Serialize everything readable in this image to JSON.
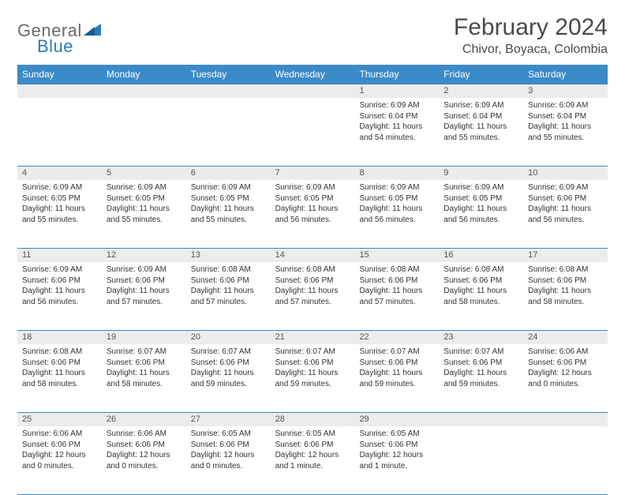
{
  "logo": {
    "text1": "General",
    "text2": "Blue"
  },
  "title": "February 2024",
  "location": "Chivor, Boyaca, Colombia",
  "colors": {
    "header_bg": "#3b8bc8",
    "header_text": "#ffffff",
    "daynum_bg": "#ececec",
    "border": "#3b8bc8",
    "logo_gray": "#6a6a6a",
    "logo_blue": "#2a7ab9"
  },
  "weekdays": [
    "Sunday",
    "Monday",
    "Tuesday",
    "Wednesday",
    "Thursday",
    "Friday",
    "Saturday"
  ],
  "weeks": [
    [
      null,
      null,
      null,
      null,
      {
        "n": "1",
        "sr": "6:09 AM",
        "ss": "6:04 PM",
        "dl": "11 hours and 54 minutes."
      },
      {
        "n": "2",
        "sr": "6:09 AM",
        "ss": "6:04 PM",
        "dl": "11 hours and 55 minutes."
      },
      {
        "n": "3",
        "sr": "6:09 AM",
        "ss": "6:04 PM",
        "dl": "11 hours and 55 minutes."
      }
    ],
    [
      {
        "n": "4",
        "sr": "6:09 AM",
        "ss": "6:05 PM",
        "dl": "11 hours and 55 minutes."
      },
      {
        "n": "5",
        "sr": "6:09 AM",
        "ss": "6:05 PM",
        "dl": "11 hours and 55 minutes."
      },
      {
        "n": "6",
        "sr": "6:09 AM",
        "ss": "6:05 PM",
        "dl": "11 hours and 55 minutes."
      },
      {
        "n": "7",
        "sr": "6:09 AM",
        "ss": "6:05 PM",
        "dl": "11 hours and 56 minutes."
      },
      {
        "n": "8",
        "sr": "6:09 AM",
        "ss": "6:05 PM",
        "dl": "11 hours and 56 minutes."
      },
      {
        "n": "9",
        "sr": "6:09 AM",
        "ss": "6:05 PM",
        "dl": "11 hours and 56 minutes."
      },
      {
        "n": "10",
        "sr": "6:09 AM",
        "ss": "6:06 PM",
        "dl": "11 hours and 56 minutes."
      }
    ],
    [
      {
        "n": "11",
        "sr": "6:09 AM",
        "ss": "6:06 PM",
        "dl": "11 hours and 56 minutes."
      },
      {
        "n": "12",
        "sr": "6:09 AM",
        "ss": "6:06 PM",
        "dl": "11 hours and 57 minutes."
      },
      {
        "n": "13",
        "sr": "6:08 AM",
        "ss": "6:06 PM",
        "dl": "11 hours and 57 minutes."
      },
      {
        "n": "14",
        "sr": "6:08 AM",
        "ss": "6:06 PM",
        "dl": "11 hours and 57 minutes."
      },
      {
        "n": "15",
        "sr": "6:08 AM",
        "ss": "6:06 PM",
        "dl": "11 hours and 57 minutes."
      },
      {
        "n": "16",
        "sr": "6:08 AM",
        "ss": "6:06 PM",
        "dl": "11 hours and 58 minutes."
      },
      {
        "n": "17",
        "sr": "6:08 AM",
        "ss": "6:06 PM",
        "dl": "11 hours and 58 minutes."
      }
    ],
    [
      {
        "n": "18",
        "sr": "6:08 AM",
        "ss": "6:06 PM",
        "dl": "11 hours and 58 minutes."
      },
      {
        "n": "19",
        "sr": "6:07 AM",
        "ss": "6:06 PM",
        "dl": "11 hours and 58 minutes."
      },
      {
        "n": "20",
        "sr": "6:07 AM",
        "ss": "6:06 PM",
        "dl": "11 hours and 59 minutes."
      },
      {
        "n": "21",
        "sr": "6:07 AM",
        "ss": "6:06 PM",
        "dl": "11 hours and 59 minutes."
      },
      {
        "n": "22",
        "sr": "6:07 AM",
        "ss": "6:06 PM",
        "dl": "11 hours and 59 minutes."
      },
      {
        "n": "23",
        "sr": "6:07 AM",
        "ss": "6:06 PM",
        "dl": "11 hours and 59 minutes."
      },
      {
        "n": "24",
        "sr": "6:06 AM",
        "ss": "6:06 PM",
        "dl": "12 hours and 0 minutes."
      }
    ],
    [
      {
        "n": "25",
        "sr": "6:06 AM",
        "ss": "6:06 PM",
        "dl": "12 hours and 0 minutes."
      },
      {
        "n": "26",
        "sr": "6:06 AM",
        "ss": "6:06 PM",
        "dl": "12 hours and 0 minutes."
      },
      {
        "n": "27",
        "sr": "6:05 AM",
        "ss": "6:06 PM",
        "dl": "12 hours and 0 minutes."
      },
      {
        "n": "28",
        "sr": "6:05 AM",
        "ss": "6:06 PM",
        "dl": "12 hours and 1 minute."
      },
      {
        "n": "29",
        "sr": "6:05 AM",
        "ss": "6:06 PM",
        "dl": "12 hours and 1 minute."
      },
      null,
      null
    ]
  ],
  "labels": {
    "sunrise": "Sunrise:",
    "sunset": "Sunset:",
    "daylight": "Daylight:"
  }
}
